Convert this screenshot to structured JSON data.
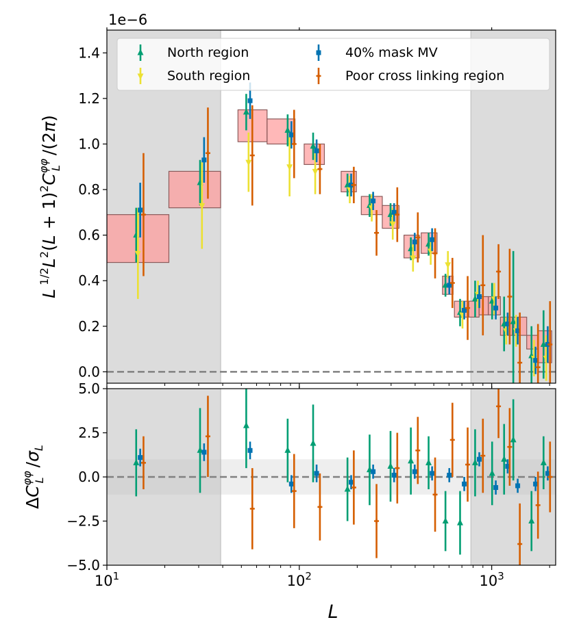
{
  "chart_data": [
    {
      "type": "errorbar",
      "panel": "top",
      "offset_label": "1e−6",
      "ylabel": "L^{1/2} L^2 (L+1)^2 C_L^{φφ} / (2π)",
      "ylim": [
        -0.05,
        1.5
      ],
      "yticks": [
        0.0,
        0.2,
        0.4,
        0.6,
        0.8,
        1.0,
        1.2,
        1.4
      ],
      "ytick_labels": [
        "0.0",
        "0.2",
        "0.4",
        "0.6",
        "0.8",
        "1.0",
        "1.2",
        "1.4"
      ],
      "xlim": [
        10,
        2150
      ],
      "xscale": "log",
      "legend_position": "top",
      "shaded_regions": [
        [
          10,
          39
        ],
        [
          780,
          2150
        ]
      ],
      "reference_line_y": 0.0,
      "bandpower_boxes": [
        {
          "L": [
            10,
            21
          ],
          "y": [
            0.48,
            0.69
          ]
        },
        {
          "L": [
            21,
            39
          ],
          "y": [
            0.72,
            0.88
          ]
        },
        {
          "L": [
            48,
            68
          ],
          "y": [
            1.01,
            1.15
          ]
        },
        {
          "L": [
            68,
            95
          ],
          "y": [
            1.0,
            1.11
          ]
        },
        {
          "L": [
            106,
            135
          ],
          "y": [
            0.91,
            1.0
          ]
        },
        {
          "L": [
            165,
            198
          ],
          "y": [
            0.79,
            0.88
          ]
        },
        {
          "L": [
            210,
            270
          ],
          "y": [
            0.69,
            0.77
          ]
        },
        {
          "L": [
            270,
            330
          ],
          "y": [
            0.63,
            0.73
          ]
        },
        {
          "L": [
            350,
            420
          ],
          "y": [
            0.5,
            0.6
          ]
        },
        {
          "L": [
            430,
            520
          ],
          "y": [
            0.52,
            0.61
          ]
        },
        {
          "L": [
            555,
            630
          ],
          "y": [
            0.34,
            0.42
          ]
        },
        {
          "L": [
            640,
            760
          ],
          "y": [
            0.24,
            0.31
          ]
        },
        {
          "L": [
            760,
            860
          ],
          "y": [
            0.24,
            0.31
          ]
        },
        {
          "L": [
            860,
            960
          ],
          "y": [
            0.25,
            0.33
          ]
        },
        {
          "L": [
            960,
            1110
          ],
          "y": [
            0.25,
            0.33
          ]
        },
        {
          "L": [
            1110,
            1280
          ],
          "y": [
            0.16,
            0.24
          ]
        },
        {
          "L": [
            1280,
            1520
          ],
          "y": [
            0.16,
            0.24
          ]
        },
        {
          "L": [
            1520,
            1750
          ],
          "y": [
            0.1,
            0.16
          ]
        },
        {
          "L": [
            1750,
            2050
          ],
          "y": [
            0.04,
            0.18
          ]
        }
      ],
      "series": [
        {
          "name": "North region",
          "color": "#029e73",
          "marker": "triangle-up",
          "L": [
            14.2,
            30.5,
            53.0,
            87.0,
            118.0,
            178.0,
            232.0,
            298.0,
            380.0,
            470.0,
            575.0,
            685.0,
            820.0,
            1005.0,
            1160.0,
            1295.0,
            1610.0,
            1860.0
          ],
          "y": [
            0.6,
            0.83,
            1.14,
            1.06,
            0.99,
            0.82,
            0.73,
            0.69,
            0.54,
            0.56,
            0.38,
            0.26,
            0.32,
            0.31,
            0.21,
            0.22,
            0.07,
            0.12
          ],
          "err": [
            0.12,
            0.1,
            0.08,
            0.07,
            0.06,
            0.05,
            0.05,
            0.05,
            0.05,
            0.05,
            0.05,
            0.06,
            0.08,
            0.08,
            0.12,
            0.31,
            0.13,
            0.15
          ]
        },
        {
          "name": "South region",
          "color": "#ece133",
          "marker": "triangle-down",
          "L": [
            14.5,
            31.2,
            54.5,
            89.0,
            121.0,
            183.0,
            238.0,
            306.0,
            390.0,
            482.0,
            592.0,
            705.0,
            848.0,
            1032.0,
            1190.0,
            1340.0,
            1660.0,
            1920.0
          ],
          "y": [
            0.52,
            0.73,
            0.92,
            0.9,
            0.88,
            0.8,
            0.72,
            0.65,
            0.5,
            0.53,
            0.47,
            0.25,
            0.34,
            0.32,
            0.18,
            0.18,
            0.06,
            0.06
          ],
          "err": [
            0.2,
            0.19,
            0.13,
            0.13,
            0.1,
            0.06,
            0.06,
            0.07,
            0.06,
            0.06,
            0.06,
            0.06,
            0.06,
            0.07,
            0.06,
            0.07,
            0.08,
            0.1
          ]
        },
        {
          "name": "40% mask MV",
          "color": "#0173b2",
          "marker": "square",
          "L": [
            14.9,
            32.0,
            55.5,
            91.0,
            123.0,
            186.0,
            242.0,
            311.0,
            398.0,
            490.0,
            602.0,
            720.0,
            862.0,
            1050.0,
            1210.0,
            1365.0,
            1690.0,
            1955.0
          ],
          "y": [
            0.71,
            0.93,
            1.19,
            1.04,
            0.97,
            0.82,
            0.75,
            0.7,
            0.57,
            0.58,
            0.38,
            0.27,
            0.33,
            0.28,
            0.21,
            0.18,
            0.05,
            0.12
          ],
          "err": [
            0.12,
            0.1,
            0.08,
            0.06,
            0.05,
            0.05,
            0.04,
            0.04,
            0.04,
            0.05,
            0.04,
            0.04,
            0.05,
            0.05,
            0.05,
            0.06,
            0.06,
            0.08
          ]
        },
        {
          "name": "Poor cross linking region",
          "color": "#d55e00",
          "marker": "plus",
          "L": [
            15.5,
            33.5,
            57.0,
            94.0,
            128.0,
            192.0,
            252.0,
            323.0,
            413.0,
            508.0,
            625.0,
            750.0,
            900.0,
            1085.0,
            1240.0,
            1400.0,
            1740.0,
            2010.0
          ],
          "y": [
            0.69,
            0.96,
            0.95,
            1.0,
            0.89,
            0.82,
            0.61,
            0.69,
            0.59,
            0.52,
            0.39,
            0.28,
            0.38,
            0.44,
            0.33,
            0.04,
            0.02,
            0.12
          ],
          "err": [
            0.27,
            0.2,
            0.22,
            0.15,
            0.11,
            0.08,
            0.1,
            0.12,
            0.11,
            0.11,
            0.11,
            0.14,
            0.22,
            0.12,
            0.21,
            0.22,
            0.19,
            0.19
          ]
        }
      ],
      "legend": [
        "North region",
        "South region",
        "40% mask MV",
        "Poor cross linking region"
      ]
    },
    {
      "type": "errorbar",
      "panel": "bottom",
      "xlabel": "L",
      "ylabel": "ΔC_L^{φφ} / σ_L",
      "ylim": [
        -5.0,
        5.0
      ],
      "yticks": [
        -5.0,
        -2.5,
        0.0,
        2.5,
        5.0
      ],
      "ytick_labels": [
        "−5.0",
        "−2.5",
        "0.0",
        "2.5",
        "5.0"
      ],
      "xlim": [
        10,
        2150
      ],
      "xscale": "log",
      "xtick_labels": [
        {
          "base": "10",
          "exp": "1"
        },
        {
          "base": "10",
          "exp": "2"
        },
        {
          "base": "10",
          "exp": "3"
        }
      ],
      "shaded_regions": [
        [
          10,
          39
        ],
        [
          780,
          2150
        ]
      ],
      "band": [
        -1,
        1
      ],
      "reference_line_y": 0.0,
      "series": [
        {
          "name": "North region",
          "color": "#029e73",
          "L": [
            14.2,
            30.5,
            53.0,
            87.0,
            118.0,
            178.0,
            232.0,
            298.0,
            380.0,
            470.0,
            575.0,
            685.0,
            820.0,
            1005.0,
            1160.0,
            1295.0,
            1610.0,
            1860.0
          ],
          "y": [
            0.8,
            1.5,
            2.9,
            1.5,
            1.9,
            -0.7,
            0.4,
            0.6,
            0.9,
            0.8,
            -2.5,
            -2.6,
            0.8,
            0.2,
            1.0,
            2.1,
            -2.5,
            0.8
          ],
          "err": [
            1.9,
            2.4,
            2.4,
            1.8,
            2.2,
            1.8,
            2.0,
            2.0,
            1.9,
            1.5,
            1.7,
            1.8,
            1.9,
            1.8,
            2.0,
            2.3,
            1.7,
            1.5
          ]
        },
        {
          "name": "40% mask MV",
          "color": "#0173b2",
          "L": [
            14.9,
            32.0,
            55.5,
            91.0,
            123.0,
            186.0,
            242.0,
            311.0,
            398.0,
            490.0,
            602.0,
            720.0,
            862.0,
            1050.0,
            1210.0,
            1365.0,
            1690.0,
            1955.0
          ],
          "y": [
            1.1,
            1.4,
            1.5,
            -0.4,
            0.2,
            -0.3,
            0.3,
            0.1,
            0.3,
            0.2,
            0.1,
            -0.4,
            1.0,
            -0.6,
            0.6,
            -0.5,
            -0.4,
            0.2
          ],
          "err": [
            0.5,
            0.5,
            0.5,
            0.5,
            0.5,
            0.4,
            0.4,
            0.4,
            0.4,
            0.4,
            0.4,
            0.4,
            0.4,
            0.4,
            0.4,
            0.4,
            0.4,
            0.4
          ]
        },
        {
          "name": "Poor cross linking region",
          "color": "#d55e00",
          "L": [
            15.5,
            33.5,
            57.0,
            94.0,
            128.0,
            192.0,
            252.0,
            323.0,
            413.0,
            508.0,
            625.0,
            750.0,
            900.0,
            1085.0,
            1240.0,
            1400.0,
            1740.0,
            2010.0
          ],
          "y": [
            0.8,
            2.3,
            -1.8,
            -0.8,
            -1.7,
            -0.6,
            -2.5,
            0.5,
            1.5,
            -1.0,
            2.1,
            0.7,
            1.2,
            4.0,
            1.7,
            -3.8,
            -1.6,
            0.0
          ],
          "err": [
            1.5,
            2.3,
            2.3,
            2.1,
            1.9,
            2.1,
            2.1,
            2.0,
            1.9,
            2.1,
            2.1,
            2.1,
            2.1,
            1.8,
            2.2,
            2.3,
            1.9,
            2.0
          ]
        }
      ]
    }
  ]
}
